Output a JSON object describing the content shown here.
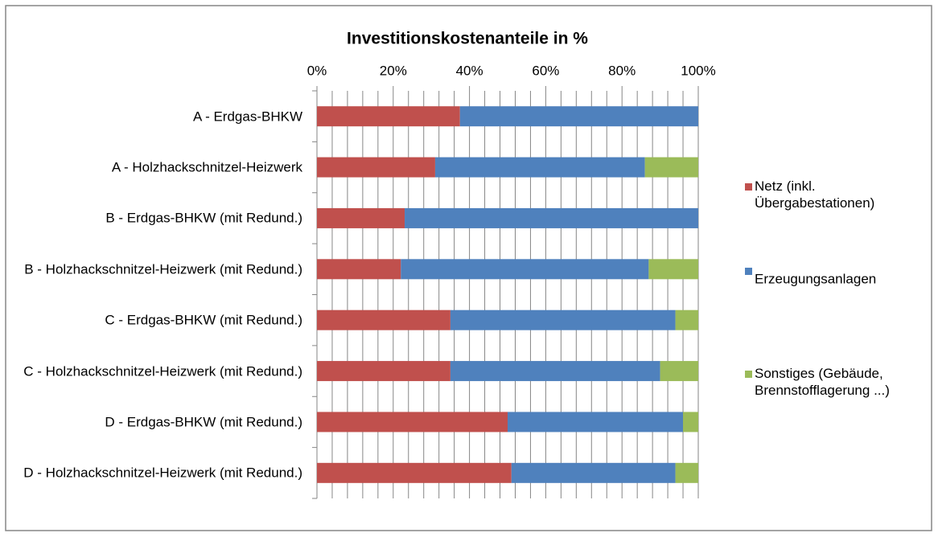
{
  "chart_data": {
    "type": "stacked_bar_horizontal",
    "title": "Investitionskostenanteile in %",
    "categories": [
      "A - Erdgas-BHKW",
      "A - Holzhackschnitzel-Heizwerk",
      "B -  Erdgas-BHKW (mit Redund.)",
      "B - Holzhackschnitzel-Heizwerk (mit Redund.)",
      "C - Erdgas-BHKW (mit Redund.)",
      "C - Holzhackschnitzel-Heizwerk (mit Redund.)",
      "D - Erdgas-BHKW (mit Redund.)",
      "D - Holzhackschnitzel-Heizwerk (mit Redund.)"
    ],
    "series": [
      {
        "name": "Netz (inkl. Übergabestationen)",
        "color": "#c0504d",
        "values": [
          37.5,
          31,
          23,
          22,
          35,
          35,
          50,
          51
        ]
      },
      {
        "name": "Erzeugungsanlagen",
        "color": "#4f81bd",
        "values": [
          62.5,
          55,
          77,
          65,
          59,
          55,
          46,
          43
        ]
      },
      {
        "name": "Sonstiges (Gebäude, Brennstofflagerung ...)",
        "color": "#9bbb59",
        "values": [
          0,
          14,
          0,
          13,
          6,
          10,
          4,
          6
        ]
      }
    ],
    "xlim": [
      0,
      100
    ],
    "xticks": [
      {
        "value": 0,
        "label": "0%"
      },
      {
        "value": 20,
        "label": "20%"
      },
      {
        "value": 40,
        "label": "40%"
      },
      {
        "value": 60,
        "label": "60%"
      },
      {
        "value": 80,
        "label": "80%"
      },
      {
        "value": 100,
        "label": "100%"
      }
    ],
    "minor_xticks": [
      4,
      8,
      12,
      16,
      24,
      28,
      32,
      36,
      44,
      48,
      52,
      56,
      64,
      68,
      72,
      76,
      84,
      88,
      92,
      96
    ],
    "grid": true,
    "legend": "right"
  }
}
